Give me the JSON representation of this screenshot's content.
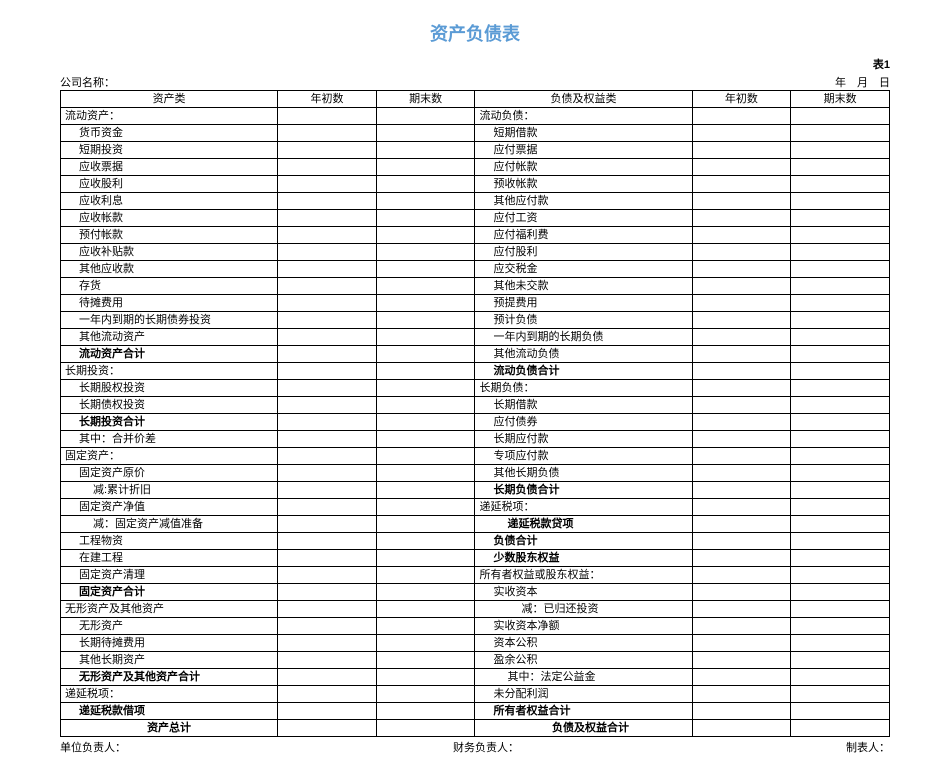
{
  "title": "资产负债表",
  "sheet_label": "表1",
  "company_label": "公司名称：",
  "date_label": "年　月　日",
  "footer": {
    "unit_head": "单位负责人：",
    "finance_head": "财务负责人：",
    "preparer": "制表人："
  },
  "columns": [
    "资产类",
    "年初数",
    "期末数",
    "负债及权益类",
    "年初数",
    "期末数"
  ],
  "rows": [
    {
      "a": "流动资产：",
      "ai": 0,
      "b": "流动负债：",
      "bi": 0
    },
    {
      "a": "货币资金",
      "ai": 1,
      "b": "短期借款",
      "bi": 1
    },
    {
      "a": "短期投资",
      "ai": 1,
      "b": "应付票据",
      "bi": 1
    },
    {
      "a": "应收票据",
      "ai": 1,
      "b": "应付帐款",
      "bi": 1
    },
    {
      "a": "应收股利",
      "ai": 1,
      "b": "预收帐款",
      "bi": 1
    },
    {
      "a": "应收利息",
      "ai": 1,
      "b": "其他应付款",
      "bi": 1
    },
    {
      "a": "应收帐款",
      "ai": 1,
      "b": "应付工资",
      "bi": 1
    },
    {
      "a": "预付帐款",
      "ai": 1,
      "b": "应付福利费",
      "bi": 1
    },
    {
      "a": "应收补贴款",
      "ai": 1,
      "b": "应付股利",
      "bi": 1
    },
    {
      "a": "其他应收款",
      "ai": 1,
      "b": "应交税金",
      "bi": 1
    },
    {
      "a": "存货",
      "ai": 1,
      "b": "其他未交款",
      "bi": 1
    },
    {
      "a": "待摊费用",
      "ai": 1,
      "b": "预提费用",
      "bi": 1
    },
    {
      "a": "一年内到期的长期债券投资",
      "ai": 1,
      "b": "预计负债",
      "bi": 1
    },
    {
      "a": "其他流动资产",
      "ai": 1,
      "b": "一年内到期的长期负债",
      "bi": 1
    },
    {
      "a": "流动资产合计",
      "ai": 1,
      "ab": true,
      "b": "其他流动负债",
      "bi": 1
    },
    {
      "a": "长期投资：",
      "ai": 0,
      "b": "流动负债合计",
      "bi": 1,
      "bb": true
    },
    {
      "a": "长期股权投资",
      "ai": 1,
      "b": "长期负债：",
      "bi": 0
    },
    {
      "a": "长期债权投资",
      "ai": 1,
      "b": "长期借款",
      "bi": 1
    },
    {
      "a": "长期投资合计",
      "ai": 1,
      "ab": true,
      "b": "应付债券",
      "bi": 1
    },
    {
      "a": "其中：合并价差",
      "ai": 1,
      "b": "长期应付款",
      "bi": 1
    },
    {
      "a": "固定资产：",
      "ai": 0,
      "b": "专项应付款",
      "bi": 1
    },
    {
      "a": "固定资产原价",
      "ai": 1,
      "b": "其他长期负债",
      "bi": 1
    },
    {
      "a": "减:累计折旧",
      "ai": 2,
      "b": "长期负债合计",
      "bi": 1,
      "bb": true
    },
    {
      "a": "固定资产净值",
      "ai": 1,
      "b": "递延税项：",
      "bi": 0
    },
    {
      "a": "减：固定资产减值准备",
      "ai": 2,
      "b": "递延税款贷项",
      "bi": 2,
      "bb": true
    },
    {
      "a": "工程物资",
      "ai": 1,
      "b": "负债合计",
      "bi": 1,
      "bb": true
    },
    {
      "a": "在建工程",
      "ai": 1,
      "b": "少数股东权益",
      "bi": 1,
      "bb": true
    },
    {
      "a": "固定资产清理",
      "ai": 1,
      "b": "所有者权益或股东权益：",
      "bi": 0
    },
    {
      "a": "固定资产合计",
      "ai": 1,
      "ab": true,
      "b": "实收资本",
      "bi": 1
    },
    {
      "a": "无形资产及其他资产",
      "ai": 0,
      "b": "减：已归还投资",
      "bi": 3
    },
    {
      "a": "无形资产",
      "ai": 1,
      "b": "实收资本净额",
      "bi": 1
    },
    {
      "a": "长期待摊费用",
      "ai": 1,
      "b": "资本公积",
      "bi": 1
    },
    {
      "a": "其他长期资产",
      "ai": 1,
      "b": "盈余公积",
      "bi": 1
    },
    {
      "a": "无形资产及其他资产合计",
      "ai": 1,
      "ab": true,
      "b": "其中：法定公益金",
      "bi": 2
    },
    {
      "a": "递延税项：",
      "ai": 0,
      "b": "未分配利润",
      "bi": 1
    },
    {
      "a": "递延税款借项",
      "ai": 1,
      "ab": true,
      "b": "所有者权益合计",
      "bi": 1,
      "bb": true
    },
    {
      "a": "资产总计",
      "ai": 0,
      "ab": true,
      "ac": true,
      "b": "负债及权益合计",
      "bi": 1,
      "bb": true,
      "bc": true
    }
  ]
}
